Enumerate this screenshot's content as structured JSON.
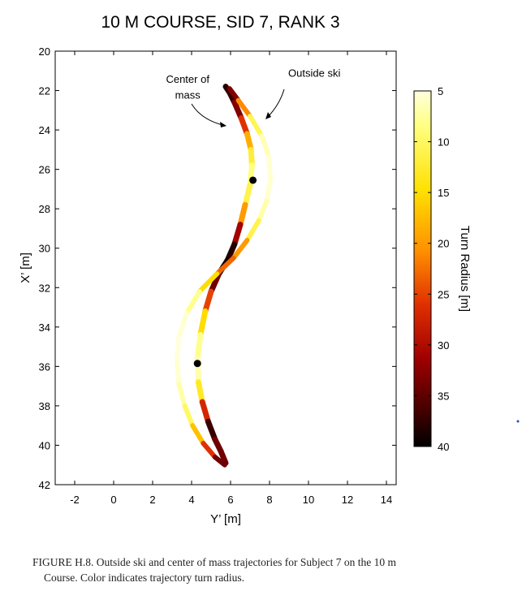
{
  "chart_data": {
    "type": "scatter",
    "title": "10 M COURSE, SID 7, RANK 3",
    "xlabel": "Y’ [m]",
    "ylabel": "X’ [m]",
    "xlim": [
      -3,
      14.5
    ],
    "ylim": [
      20,
      42
    ],
    "y_reversed": true,
    "xticks": [
      -2,
      0,
      2,
      4,
      6,
      8,
      10,
      12,
      14
    ],
    "yticks": [
      20,
      22,
      24,
      26,
      28,
      30,
      32,
      34,
      36,
      38,
      40,
      42
    ],
    "grid": false,
    "colorbar": {
      "label": "Turn Radius [m]",
      "min": 5,
      "max": 40,
      "ticks": [
        5,
        10,
        15,
        20,
        25,
        30,
        35,
        40
      ],
      "colormap": "hot-reversed"
    },
    "series": [
      {
        "points": [
          {
            "x": 5.75,
            "y": 21.8,
            "r": 38
          },
          {
            "x": 5.95,
            "y": 22.1,
            "r": 38
          },
          {
            "x": 6.2,
            "y": 22.6,
            "r": 36
          },
          {
            "x": 6.55,
            "y": 23.4,
            "r": 30
          },
          {
            "x": 6.85,
            "y": 24.2,
            "r": 22
          },
          {
            "x": 7.05,
            "y": 25.0,
            "r": 15
          },
          {
            "x": 7.1,
            "y": 25.8,
            "r": 9
          },
          {
            "x": 7.0,
            "y": 26.8,
            "r": 8
          },
          {
            "x": 6.75,
            "y": 27.8,
            "r": 14
          },
          {
            "x": 6.5,
            "y": 28.8,
            "r": 26
          },
          {
            "x": 6.2,
            "y": 29.8,
            "r": 36
          },
          {
            "x": 5.85,
            "y": 30.6,
            "r": 40
          },
          {
            "x": 5.4,
            "y": 31.3,
            "r": 38
          },
          {
            "x": 5.0,
            "y": 32.2,
            "r": 30
          },
          {
            "x": 4.7,
            "y": 33.2,
            "r": 20
          },
          {
            "x": 4.45,
            "y": 34.4,
            "r": 10
          },
          {
            "x": 4.3,
            "y": 35.6,
            "r": 6
          },
          {
            "x": 4.35,
            "y": 36.8,
            "r": 8
          },
          {
            "x": 4.55,
            "y": 37.8,
            "r": 18
          },
          {
            "x": 4.85,
            "y": 38.8,
            "r": 36
          },
          {
            "x": 5.2,
            "y": 39.7,
            "r": 38
          },
          {
            "x": 5.5,
            "y": 40.3,
            "r": 30
          },
          {
            "x": 5.75,
            "y": 40.9,
            "r": 38
          }
        ]
      },
      {
        "points": [
          {
            "x": 5.95,
            "y": 21.9,
            "r": 38
          },
          {
            "x": 6.4,
            "y": 22.5,
            "r": 28
          },
          {
            "x": 7.0,
            "y": 23.3,
            "r": 14
          },
          {
            "x": 7.6,
            "y": 24.3,
            "r": 7
          },
          {
            "x": 7.95,
            "y": 25.3,
            "r": 6
          },
          {
            "x": 8.05,
            "y": 26.5,
            "r": 5
          },
          {
            "x": 7.85,
            "y": 27.6,
            "r": 6
          },
          {
            "x": 7.45,
            "y": 28.6,
            "r": 8
          },
          {
            "x": 6.85,
            "y": 29.6,
            "r": 14
          },
          {
            "x": 6.15,
            "y": 30.5,
            "r": 26
          },
          {
            "x": 5.3,
            "y": 31.3,
            "r": 20
          },
          {
            "x": 4.4,
            "y": 32.2,
            "r": 10
          },
          {
            "x": 3.75,
            "y": 33.3,
            "r": 6
          },
          {
            "x": 3.35,
            "y": 34.5,
            "r": 5
          },
          {
            "x": 3.25,
            "y": 35.7,
            "r": 5
          },
          {
            "x": 3.35,
            "y": 36.9,
            "r": 6
          },
          {
            "x": 3.65,
            "y": 38.0,
            "r": 8
          },
          {
            "x": 4.05,
            "y": 39.0,
            "r": 12
          },
          {
            "x": 4.6,
            "y": 39.9,
            "r": 22
          },
          {
            "x": 5.2,
            "y": 40.6,
            "r": 30
          },
          {
            "x": 5.7,
            "y": 41.0,
            "r": 38
          }
        ]
      }
    ],
    "markers": [
      {
        "x": 7.15,
        "y": 26.55
      },
      {
        "x": 4.3,
        "y": 35.85
      }
    ],
    "annotations": [
      {
        "text": "Center of",
        "x": 3.8,
        "y": 21.6
      },
      {
        "text": "mass",
        "x": 3.8,
        "y": 22.4
      },
      {
        "text": "Outside ski",
        "x": 10.3,
        "y": 21.3
      }
    ]
  },
  "caption": {
    "line1": "FIGURE H.8. Outside ski and center of mass trajectories for Subject 7 on the 10 m",
    "line2": "Course. Color indicates trajectory turn radius."
  }
}
